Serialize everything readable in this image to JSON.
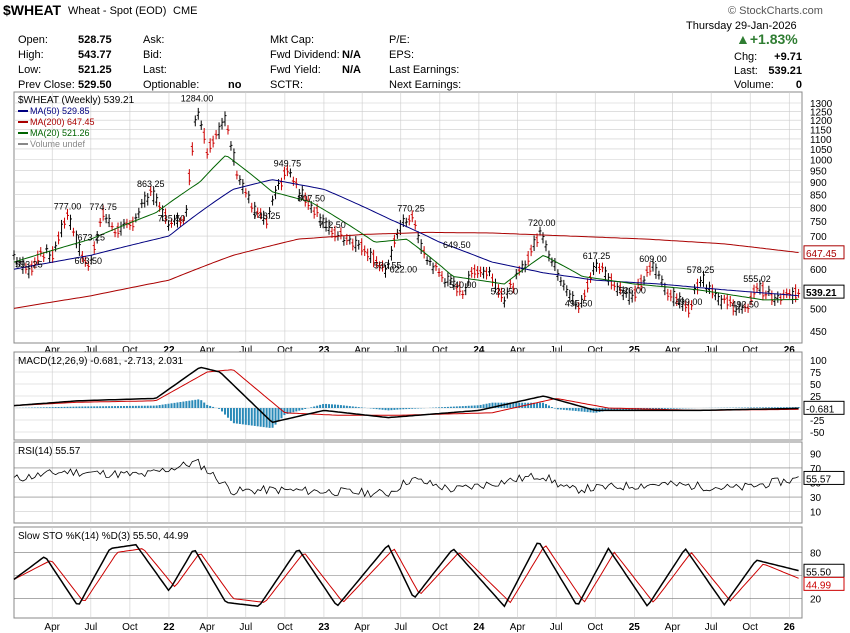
{
  "header": {
    "symbol": "$WHEAT",
    "description": "Wheat - Spot (EOD)",
    "exchange": "CME",
    "copyright": "© StockCharts.com",
    "date": "Thursday 29-Jan-2026",
    "change_pct": "+1.83%",
    "change_label": "Chg:",
    "change_value": "+9.71",
    "last_label": "Last:",
    "last_value": "539.21",
    "volume_label": "Volume:",
    "volume_value": "0",
    "fields": {
      "open_label": "Open:",
      "open": "528.75",
      "high_label": "High:",
      "high": "543.77",
      "low_label": "Low:",
      "low": "521.25",
      "prevclose_label": "Prev Close:",
      "prevclose": "529.50",
      "ask_label": "Ask:",
      "bid_label": "Bid:",
      "last2_label": "Last:",
      "optionable_label": "Optionable:",
      "optionable": "no",
      "mktcap_label": "Mkt Cap:",
      "fwddiv_label": "Fwd Dividend:",
      "fwddiv": "N/A",
      "fwdyield_label": "Fwd Yield:",
      "fwdyield": "N/A",
      "sctr_label": "SCTR:",
      "pe_label": "P/E:",
      "eps_label": "EPS:",
      "lastearn_label": "Last Earnings:",
      "nextearn_label": "Next Earnings:"
    }
  },
  "colors": {
    "up": "#000000",
    "down": "#cc0000",
    "ma50": "#000080",
    "ma200": "#aa0000",
    "ma20": "#006400",
    "hist": "#2a8ab8",
    "grid": "#cccccc"
  },
  "chart_data": [
    {
      "type": "line",
      "title": "$WHEAT (Weekly) 539.21",
      "legend": [
        "MA(50) 529.85",
        "MA(200) 647.45",
        "MA(20) 521.26",
        "Volume undef"
      ],
      "y_ticks": [
        450,
        500,
        550,
        600,
        650,
        700,
        750,
        800,
        850,
        900,
        950,
        1000,
        1050,
        1100,
        1150,
        1200,
        1250,
        1300
      ],
      "x_ticks": [
        "Apr",
        "Jul",
        "Oct",
        "22",
        "Apr",
        "Jul",
        "Oct",
        "23",
        "Apr",
        "Jul",
        "Oct",
        "24",
        "Apr",
        "Jul",
        "Oct",
        "25",
        "Apr",
        "Jul",
        "Oct",
        "26"
      ],
      "annotations": [
        {
          "label": "777.00",
          "x": "2021-05-07",
          "y": 777
        },
        {
          "label": "593.25",
          "x": "2021-02-05",
          "y": 593.25
        },
        {
          "label": "603.50",
          "x": "2021-06-25",
          "y": 603.5
        },
        {
          "label": "774.75",
          "x": "2021-07-30",
          "y": 774.75
        },
        {
          "label": "673.25",
          "x": "2021-07-02",
          "y": 673.25
        },
        {
          "label": "863.25",
          "x": "2021-11-19",
          "y": 863.25
        },
        {
          "label": "735.50",
          "x": "2022-01-07",
          "y": 735.5
        },
        {
          "label": "1284.00",
          "x": "2022-03-08",
          "y": 1284
        },
        {
          "label": "743.25",
          "x": "2022-08-19",
          "y": 743.25
        },
        {
          "label": "949.75",
          "x": "2022-10-07",
          "y": 949.75
        },
        {
          "label": "807.50",
          "x": "2022-12-02",
          "y": 807.5
        },
        {
          "label": "712.50",
          "x": "2023-01-20",
          "y": 712.5
        },
        {
          "label": "590.55",
          "x": "2023-05-31",
          "y": 590.55
        },
        {
          "label": "770.25",
          "x": "2023-07-25",
          "y": 770.25
        },
        {
          "label": "622.00",
          "x": "2023-07-07",
          "y": 622
        },
        {
          "label": "649.50",
          "x": "2023-11-10",
          "y": 649.5
        },
        {
          "label": "540.00",
          "x": "2023-11-24",
          "y": 540
        },
        {
          "label": "523.50",
          "x": "2024-03-01",
          "y": 523.5
        },
        {
          "label": "720.00",
          "x": "2024-05-28",
          "y": 720
        },
        {
          "label": "495.50",
          "x": "2024-08-23",
          "y": 495.5
        },
        {
          "label": "617.25",
          "x": "2024-10-04",
          "y": 617.25
        },
        {
          "label": "526.00",
          "x": "2024-12-27",
          "y": 526
        },
        {
          "label": "609.00",
          "x": "2025-02-14",
          "y": 609
        },
        {
          "label": "578.25",
          "x": "2025-06-06",
          "y": 578.25
        },
        {
          "label": "499.00",
          "x": "2025-05-09",
          "y": 499
        },
        {
          "label": "555.02",
          "x": "2025-10-17",
          "y": 555.02
        },
        {
          "label": "492.50",
          "x": "2025-09-19",
          "y": 492.5
        }
      ],
      "series": [
        {
          "name": "$WHEAT",
          "x": [
            "2021-01-01",
            "2021-02-05",
            "2021-03-05",
            "2021-04-02",
            "2021-05-07",
            "2021-06-04",
            "2021-06-25",
            "2021-07-30",
            "2021-08-27",
            "2021-10-01",
            "2021-11-19",
            "2021-12-17",
            "2022-01-07",
            "2022-02-11",
            "2022-03-08",
            "2022-04-01",
            "2022-05-13",
            "2022-06-10",
            "2022-07-15",
            "2022-08-19",
            "2022-09-16",
            "2022-10-07",
            "2022-11-04",
            "2022-12-02",
            "2023-01-20",
            "2023-03-03",
            "2023-04-07",
            "2023-05-31",
            "2023-06-23",
            "2023-07-25",
            "2023-08-25",
            "2023-10-06",
            "2023-11-24",
            "2023-12-22",
            "2024-01-26",
            "2024-03-01",
            "2024-04-12",
            "2024-05-28",
            "2024-06-21",
            "2024-08-23",
            "2024-10-04",
            "2024-11-15",
            "2024-12-27",
            "2025-02-14",
            "2025-03-21",
            "2025-05-09",
            "2025-06-06",
            "2025-07-25",
            "2025-09-19",
            "2025-10-17",
            "2025-11-28",
            "2026-01-29"
          ],
          "values": [
            640,
            593,
            650,
            640,
            777,
            660,
            603,
            774,
            720,
            730,
            863,
            780,
            735,
            780,
            1284,
            1050,
            1200,
            950,
            800,
            743,
            880,
            949,
            860,
            807,
            712,
            690,
            660,
            590,
            720,
            770,
            640,
            580,
            540,
            600,
            590,
            523,
            600,
            720,
            620,
            495,
            617,
            560,
            526,
            609,
            540,
            499,
            578,
            520,
            492,
            555,
            520,
            539.21
          ]
        },
        {
          "name": "MA(50)",
          "x": [
            "2021-01-01",
            "2021-07-01",
            "2022-01-01",
            "2022-06-01",
            "2022-09-01",
            "2023-01-01",
            "2023-06-01",
            "2023-10-01",
            "2024-02-01",
            "2024-06-01",
            "2024-10-01",
            "2025-03-01",
            "2025-08-01",
            "2026-01-29"
          ],
          "values": [
            600,
            640,
            700,
            870,
            910,
            870,
            760,
            680,
            620,
            590,
            570,
            560,
            545,
            529.85
          ]
        },
        {
          "name": "MA(200)",
          "x": [
            "2021-01-01",
            "2021-07-01",
            "2022-01-01",
            "2022-06-01",
            "2022-11-01",
            "2023-04-01",
            "2023-09-01",
            "2024-02-01",
            "2024-08-01",
            "2025-02-01",
            "2025-08-01",
            "2026-01-29"
          ],
          "values": [
            500,
            530,
            570,
            640,
            690,
            705,
            712,
            710,
            700,
            690,
            675,
            647.45
          ]
        },
        {
          "name": "MA(20)",
          "x": [
            "2021-01-01",
            "2021-07-01",
            "2021-12-01",
            "2022-03-15",
            "2022-05-15",
            "2022-09-01",
            "2022-12-01",
            "2023-05-01",
            "2023-07-15",
            "2023-11-01",
            "2024-03-01",
            "2024-06-01",
            "2024-09-01",
            "2025-01-01",
            "2025-06-01",
            "2025-11-01",
            "2026-01-29"
          ],
          "values": [
            620,
            690,
            780,
            900,
            1020,
            860,
            820,
            680,
            690,
            580,
            560,
            640,
            580,
            560,
            545,
            520,
            521.26
          ]
        }
      ]
    },
    {
      "type": "line",
      "title": "MACD(12,26,9) -0.681, -2.713, 2.031",
      "y_ticks": [
        100,
        75,
        50,
        25,
        0,
        -25,
        -50
      ],
      "series": [
        {
          "name": "MACD",
          "x": [
            "2021-01-01",
            "2021-06-01",
            "2021-12-01",
            "2022-03-15",
            "2022-05-01",
            "2022-09-01",
            "2023-01-01",
            "2023-06-01",
            "2024-01-01",
            "2024-06-01",
            "2024-10-01",
            "2025-06-01",
            "2026-01-29"
          ],
          "values": [
            5,
            15,
            20,
            85,
            75,
            -30,
            -5,
            -20,
            -5,
            25,
            -5,
            -5,
            -0.681
          ]
        },
        {
          "name": "Signal",
          "x": [
            "2021-01-01",
            "2021-06-01",
            "2021-12-01",
            "2022-04-01",
            "2022-06-01",
            "2022-10-01",
            "2023-02-01",
            "2023-07-01",
            "2024-02-01",
            "2024-07-01",
            "2024-11-01",
            "2025-06-01",
            "2026-01-29"
          ],
          "values": [
            5,
            12,
            15,
            75,
            80,
            -10,
            -15,
            -15,
            -10,
            20,
            0,
            -5,
            -2.713
          ]
        },
        {
          "name": "Histogram",
          "x": [
            "2022-03-01",
            "2022-09-01",
            "2024-06-01",
            "2026-01-29"
          ],
          "values": [
            25,
            -30,
            10,
            2.031
          ]
        }
      ]
    },
    {
      "type": "line",
      "title": "RSI(14) 55.57",
      "y_ticks": [
        90,
        70,
        50,
        30,
        10
      ],
      "series": [
        {
          "name": "RSI",
          "x": [
            "2021-01-01",
            "2021-05-01",
            "2021-11-01",
            "2022-03-08",
            "2022-06-01",
            "2022-09-01",
            "2023-01-01",
            "2023-06-01",
            "2023-07-25",
            "2023-11-01",
            "2024-05-28",
            "2024-08-01",
            "2025-03-01",
            "2025-09-01",
            "2026-01-29"
          ],
          "values": [
            55,
            65,
            60,
            78,
            38,
            40,
            38,
            35,
            55,
            40,
            60,
            40,
            48,
            42,
            55.57
          ]
        }
      ]
    },
    {
      "type": "line",
      "title": "Slow STO %K(14) %D(3) 55.50, 44.99",
      "y_ticks": [
        80,
        50,
        20
      ],
      "series": [
        {
          "name": "%K",
          "x": [
            "2021-01-01",
            "2021-03-15",
            "2021-06-01",
            "2021-08-15",
            "2021-10-15",
            "2022-01-01",
            "2022-03-01",
            "2022-05-15",
            "2022-08-01",
            "2022-11-01",
            "2023-02-01",
            "2023-06-01",
            "2023-08-01",
            "2023-11-01",
            "2024-03-01",
            "2024-05-20",
            "2024-08-20",
            "2024-11-01",
            "2025-02-01",
            "2025-05-01",
            "2025-08-01",
            "2025-10-15",
            "2026-01-29"
          ],
          "values": [
            45,
            75,
            10,
            85,
            90,
            30,
            85,
            15,
            10,
            85,
            10,
            90,
            20,
            85,
            10,
            95,
            10,
            85,
            10,
            85,
            12,
            70,
            55.5
          ]
        },
        {
          "name": "%D",
          "x": [
            "2021-01-01",
            "2021-03-30",
            "2021-06-15",
            "2021-09-01",
            "2021-11-01",
            "2022-01-15",
            "2022-03-15",
            "2022-06-01",
            "2022-08-15",
            "2022-11-15",
            "2023-02-15",
            "2023-06-15",
            "2023-08-15",
            "2023-11-15",
            "2024-03-15",
            "2024-06-05",
            "2024-09-05",
            "2024-11-15",
            "2025-02-15",
            "2025-05-15",
            "2025-08-15",
            "2025-11-01",
            "2026-01-29"
          ],
          "values": [
            45,
            70,
            15,
            80,
            85,
            35,
            80,
            20,
            15,
            80,
            15,
            85,
            25,
            80,
            15,
            90,
            15,
            80,
            15,
            80,
            17,
            65,
            44.99
          ]
        }
      ]
    }
  ]
}
